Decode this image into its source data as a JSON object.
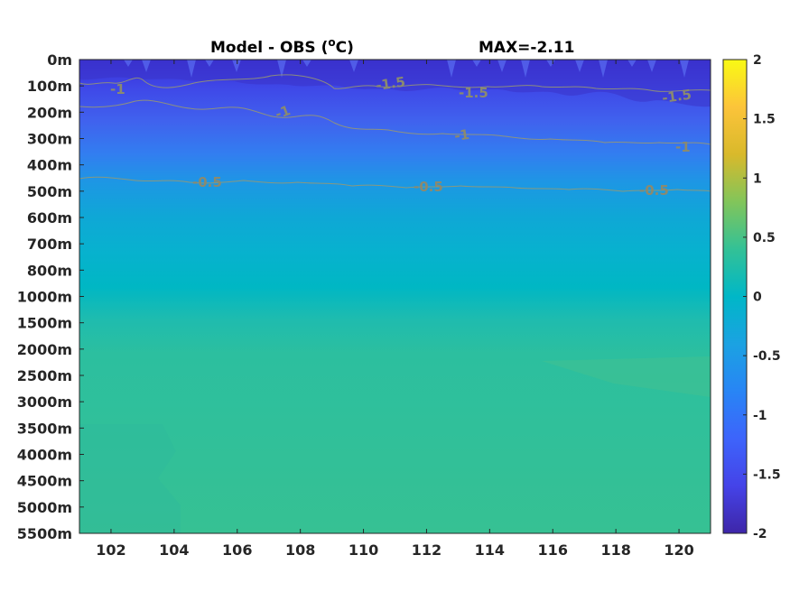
{
  "chart_data": {
    "type": "heatmap",
    "title_left": "Model - OBS (",
    "title_unit": "o",
    "title_unit_tail": "C)",
    "title_right": "MAX=-2.11",
    "y_ticks": [
      "0m",
      "100m",
      "200m",
      "300m",
      "400m",
      "500m",
      "600m",
      "700m",
      "800m",
      "1000m",
      "1500m",
      "2000m",
      "2500m",
      "3000m",
      "3500m",
      "4000m",
      "4500m",
      "5000m",
      "5500m"
    ],
    "x_ticks": [
      102,
      104,
      106,
      108,
      110,
      112,
      114,
      116,
      118,
      120
    ],
    "xlim": [
      101,
      121
    ],
    "colorbar": {
      "ticks": [
        "2",
        "1.5",
        "1",
        "0.5",
        "0",
        "-0.5",
        "-1",
        "-1.5",
        "-2"
      ],
      "range": [
        -2,
        2
      ],
      "colormap": "parula"
    },
    "depth_profile": [
      {
        "level": "0m",
        "value": -1.6
      },
      {
        "level": "100m",
        "value": -1.4
      },
      {
        "level": "200m",
        "value": -1.1
      },
      {
        "level": "300m",
        "value": -0.95
      },
      {
        "level": "400m",
        "value": -0.75
      },
      {
        "level": "500m",
        "value": -0.5
      },
      {
        "level": "600m",
        "value": -0.35
      },
      {
        "level": "700m",
        "value": -0.25
      },
      {
        "level": "800m",
        "value": -0.15
      },
      {
        "level": "1000m",
        "value": -0.05
      },
      {
        "level": "1500m",
        "value": 0.1
      },
      {
        "level": "2000m",
        "value": 0.2
      },
      {
        "level": "2500m",
        "value": 0.25
      },
      {
        "level": "3000m",
        "value": 0.25
      },
      {
        "level": "3500m",
        "value": 0.25
      },
      {
        "level": "4000m",
        "value": 0.25
      },
      {
        "level": "4500m",
        "value": 0.25
      },
      {
        "level": "5000m",
        "value": 0.25
      },
      {
        "level": "5500m",
        "value": 0.25
      }
    ],
    "contours": [
      {
        "level": -1.5,
        "labels": [
          "-1.5",
          "-1.5",
          "-1.5"
        ]
      },
      {
        "level": -1,
        "labels": [
          "-1",
          "-1",
          "-1",
          "-1"
        ]
      },
      {
        "level": -0.5,
        "labels": [
          "-0.5",
          "-0.5",
          "-0.5"
        ]
      }
    ]
  }
}
